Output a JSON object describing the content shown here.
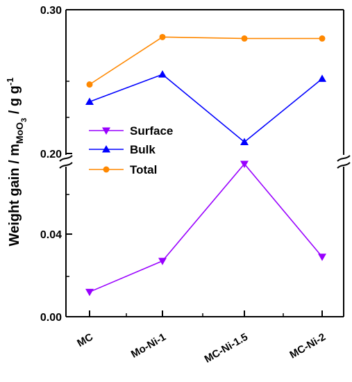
{
  "chart_data": {
    "type": "line",
    "broken_y_axis": true,
    "categories": [
      "MC",
      "Mo-Ni-1",
      "MC-Ni-1.5",
      "MC-Ni-2"
    ],
    "ylabel": {
      "main": "Weight gain / m",
      "subscript": "MoO",
      "subscript2": "3",
      "unit": " / g g",
      "superscript": "-1"
    },
    "axes": [
      {
        "name": "upper",
        "ylim": [
          0.2,
          0.3
        ],
        "ticks": [
          "0.20",
          "0.30"
        ],
        "tick_values": [
          0.2,
          0.3
        ]
      },
      {
        "name": "lower",
        "ylim": [
          0.0,
          0.075
        ],
        "ticks": [
          "0.00",
          "0.04"
        ],
        "tick_values": [
          0.0,
          0.04
        ]
      }
    ],
    "series": [
      {
        "name": "Surface",
        "axis": "lower",
        "color": "#9900ff",
        "marker": "triangle-down",
        "values": [
          0.012,
          0.027,
          0.074,
          0.029
        ]
      },
      {
        "name": "Bulk",
        "axis": "upper",
        "color": "#0000ff",
        "marker": "triangle-up",
        "values": [
          0.236,
          0.255,
          0.208,
          0.252
        ]
      },
      {
        "name": "Total",
        "axis": "upper",
        "color": "#ff8800",
        "marker": "circle",
        "values": [
          0.248,
          0.281,
          0.28,
          0.28
        ]
      }
    ],
    "legend": {
      "placement": "center-left"
    },
    "grid": false
  }
}
